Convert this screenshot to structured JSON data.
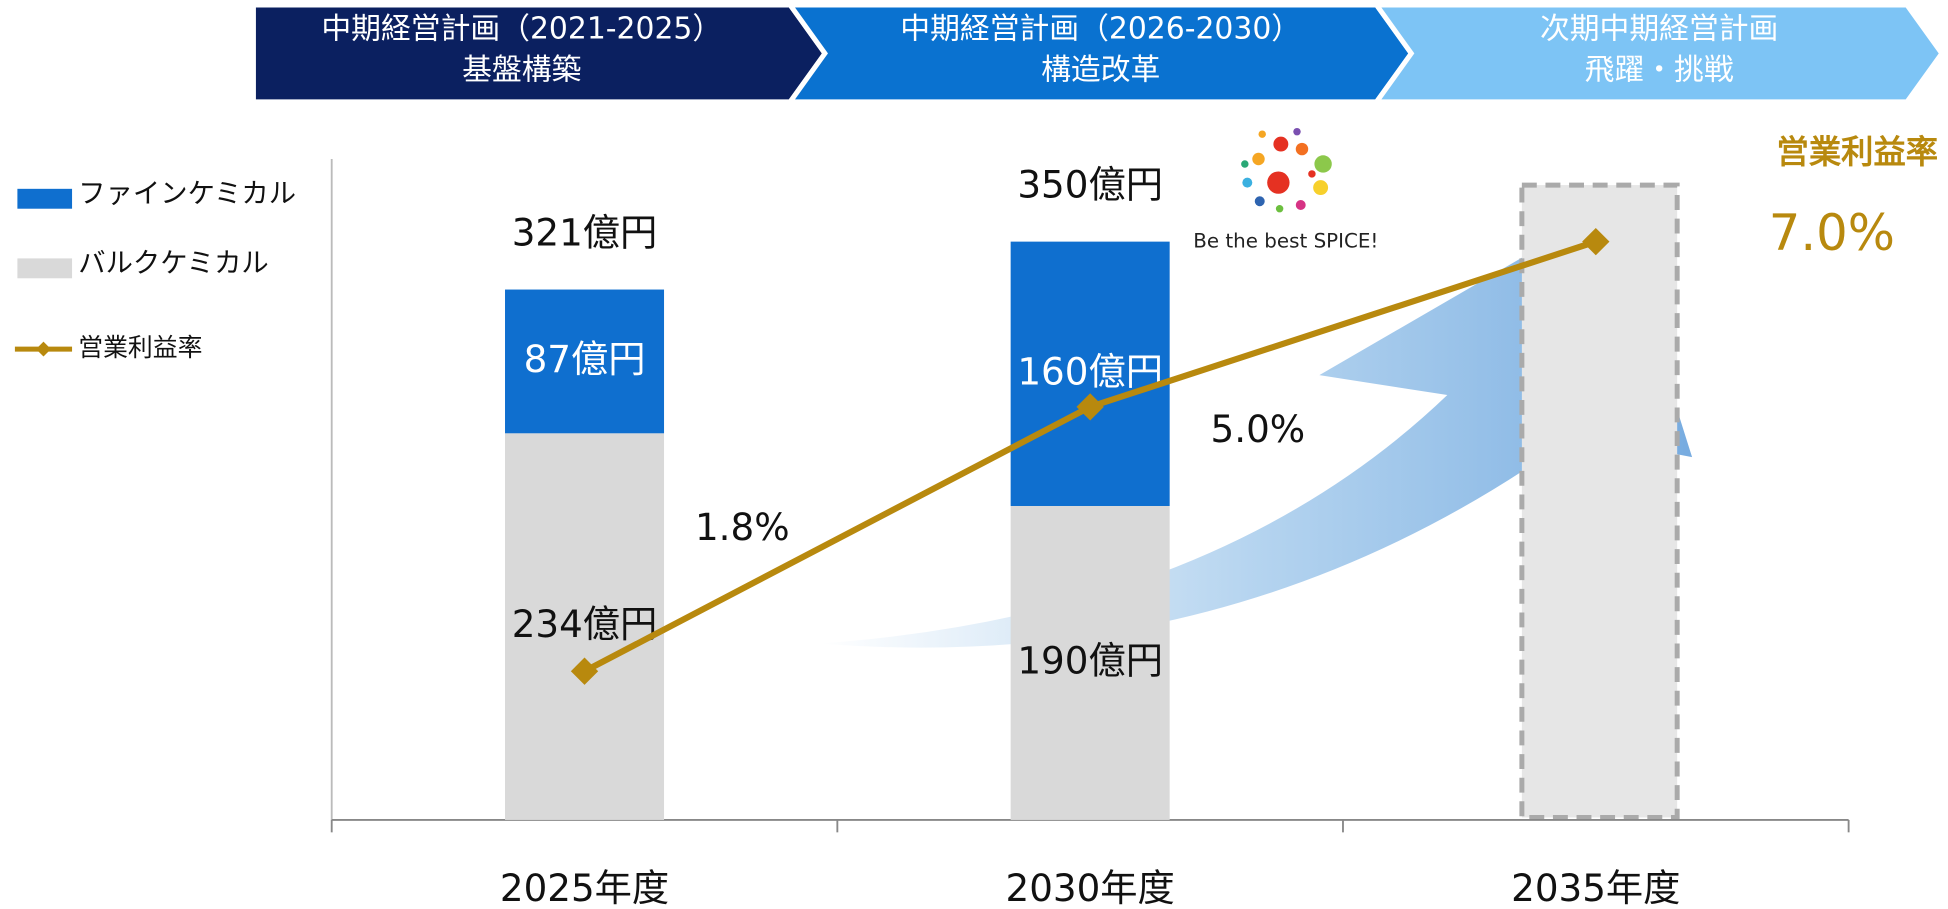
{
  "header": {
    "phases": [
      {
        "title": "中期経営計画（2021-2025）",
        "subtitle": "基盤構築",
        "color": "#0b2060"
      },
      {
        "title": "中期経営計画（2026-2030）",
        "subtitle": "構造改革",
        "color": "#0a72d0"
      },
      {
        "title": "次期中期経営計画",
        "subtitle": "飛躍・挑戦",
        "color": "#7dc4f5"
      }
    ]
  },
  "logo_text": "Be the best SPICE!",
  "chart_data": {
    "type": "bar",
    "stacked": true,
    "categories": [
      "2025年度",
      "2030年度",
      "2035年度"
    ],
    "series": [
      {
        "name": "バルクケミカル",
        "color": "#d9d9d9",
        "values": [
          234,
          190,
          null
        ],
        "value_labels": [
          "234億円",
          "190億円",
          null
        ]
      },
      {
        "name": "ファインケミカル",
        "color": "#0f6fcf",
        "values": [
          87,
          160,
          null
        ],
        "value_labels": [
          "87億円",
          "160億円",
          null
        ]
      },
      {
        "name": "営業利益率",
        "type": "line",
        "axis": "y2",
        "color": "#b8890e",
        "values": [
          1.8,
          5.0,
          7.0
        ],
        "value_labels": [
          "1.8%",
          "5.0%",
          "7.0%"
        ]
      }
    ],
    "totals": [
      321,
      350,
      null
    ],
    "total_labels": [
      "321億円",
      "350億円",
      null
    ],
    "ylim": [
      0,
      400
    ],
    "y2lim": [
      0,
      8
    ]
  }
}
